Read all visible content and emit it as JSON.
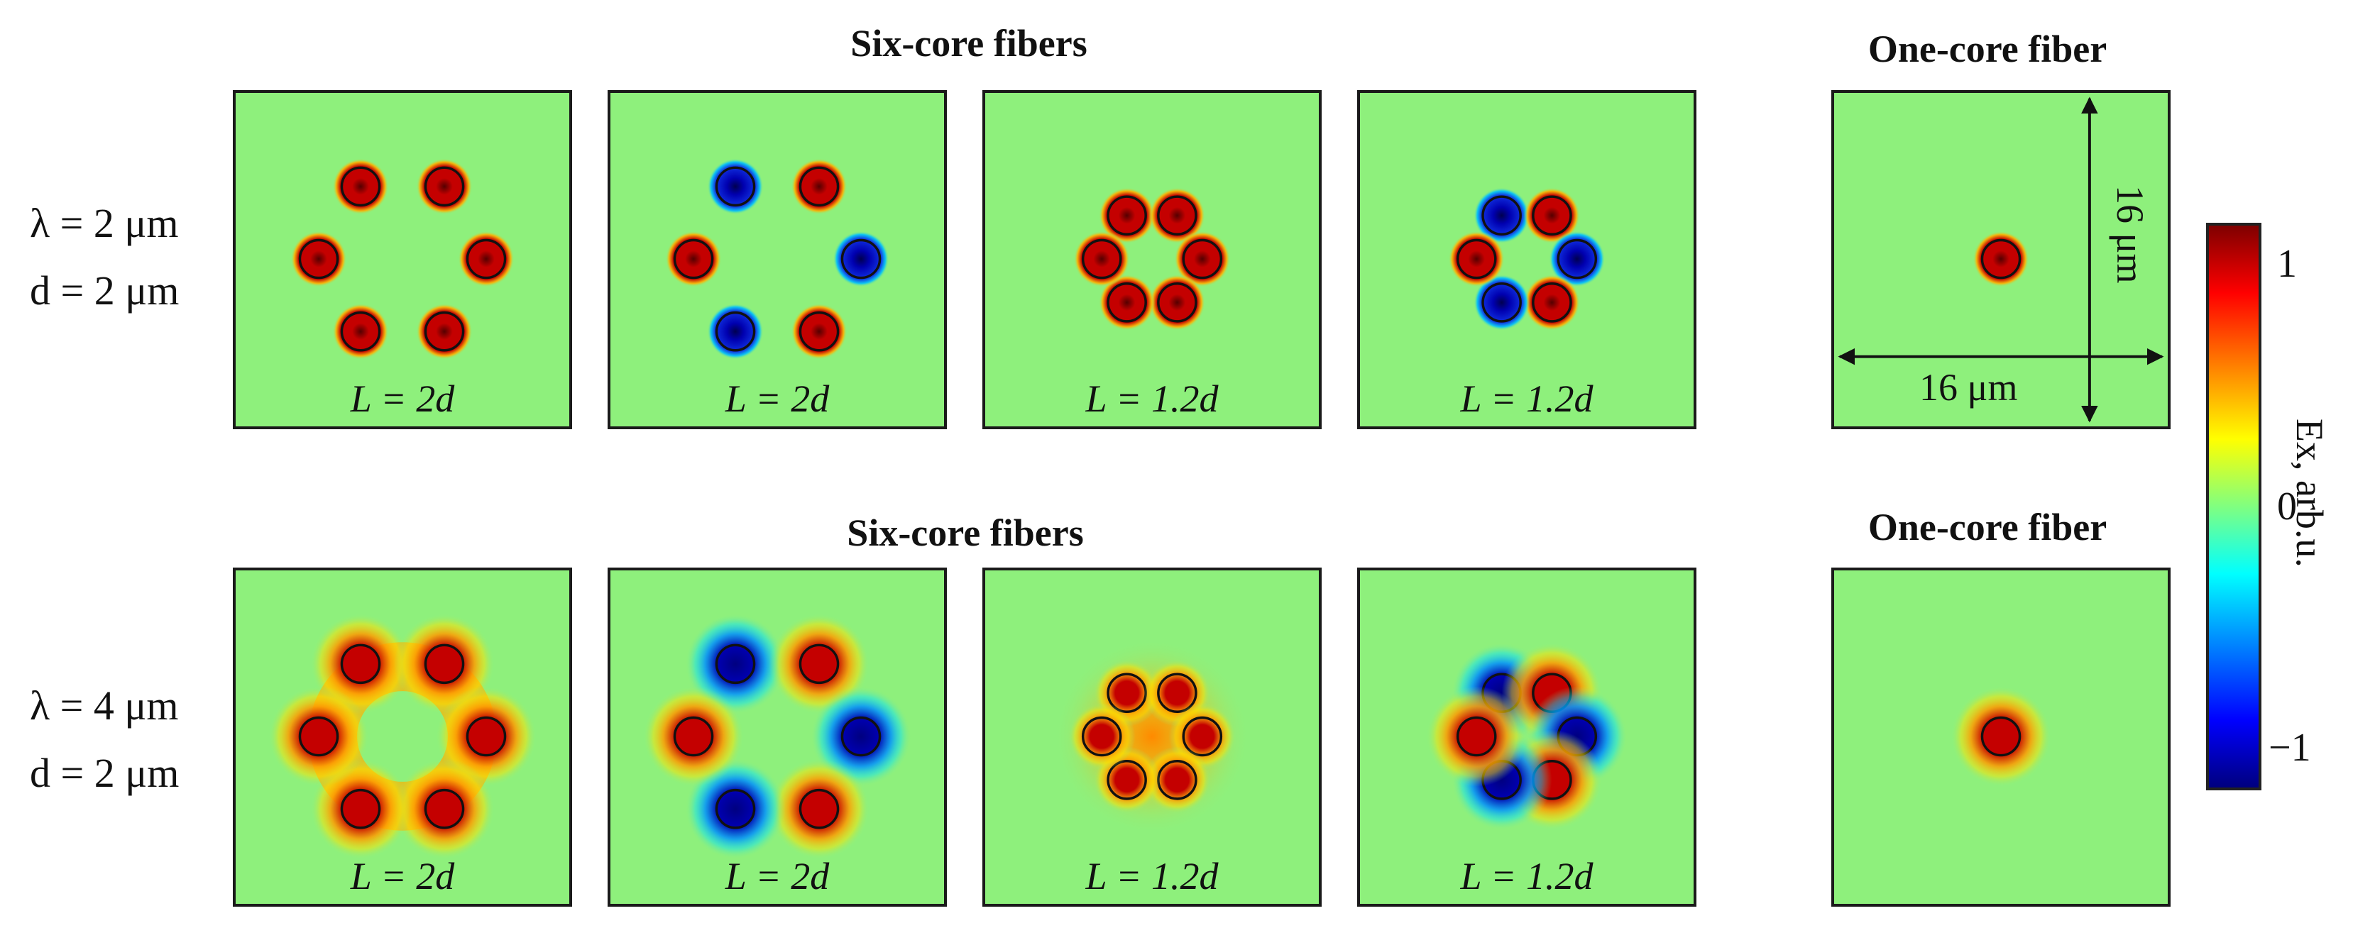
{
  "header_six_core_top": "Six-core fibers",
  "header_one_core_top": "One-core fiber",
  "header_six_core_bottom": "Six-core fibers",
  "header_one_core_bottom": "One-core fiber",
  "rows": [
    {
      "lambda_label": "λ = 2 μm",
      "d_label": "d = 2 μm"
    },
    {
      "lambda_label": "λ = 4 μm",
      "d_label": "d = 2 μm"
    }
  ],
  "panel_labels": [
    "L = 2d",
    "L = 2d",
    "L = 1.2d",
    "L = 1.2d"
  ],
  "dimension_horizontal": "16 μm",
  "dimension_vertical": "16 μm",
  "colorbar": {
    "label": "Ex, arb.u.",
    "ticks": [
      "1",
      "0",
      "−1"
    ],
    "colors": [
      "#7f0000",
      "#ff0000",
      "#ff8000",
      "#ffff00",
      "#80ff80",
      "#00ffff",
      "#0080ff",
      "#0000ff",
      "#00007f"
    ]
  },
  "field_colors": {
    "positive": "#c40000",
    "negative": "#0000b0",
    "background": "#8ef07c"
  }
}
